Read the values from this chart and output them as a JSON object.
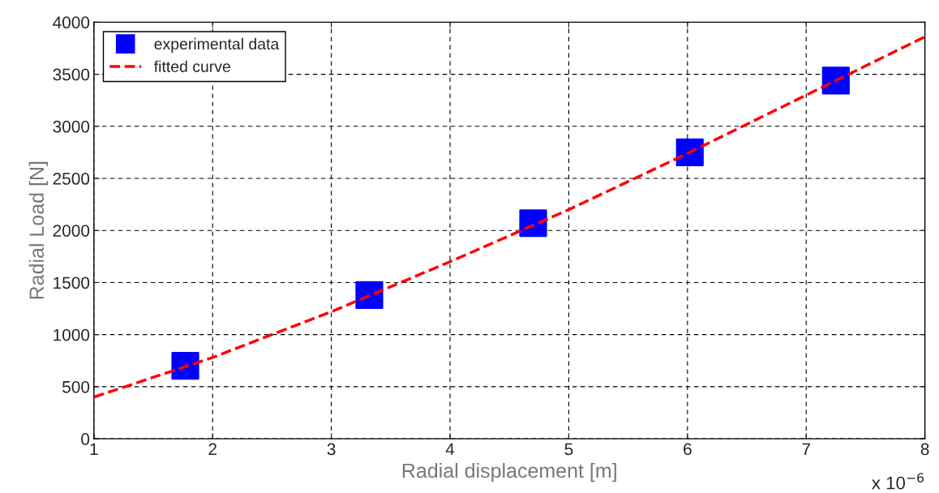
{
  "chart_data": {
    "type": "scatter",
    "xlabel": "Radial displacement [m]",
    "ylabel": "Radial Load [N]",
    "annotations": [
      "x 10$^{−6}$"
    ],
    "xlim": [
      1,
      8
    ],
    "xticks": [
      1,
      2,
      3,
      4,
      5,
      6,
      7,
      8
    ],
    "ylim": [
      0,
      4000
    ],
    "yticks": [
      0,
      500,
      1000,
      1500,
      2000,
      2500,
      3000,
      3500,
      4000
    ],
    "grid": true,
    "legend": "top left",
    "series": [
      {
        "name": "experimental data",
        "marker": "square",
        "color": "#0000ff",
        "x": [
          1.77,
          3.32,
          4.7,
          6.02,
          7.25
        ],
        "values": [
          700,
          1380,
          2070,
          2750,
          3440
        ]
      },
      {
        "name": "fitted curve",
        "type": "line",
        "line_style": "dashed",
        "color": "#ff0000",
        "x": [
          1,
          2,
          2.5,
          3,
          3.5,
          4,
          4.5,
          5,
          5.5,
          6,
          6.5,
          7,
          7.5,
          8
        ],
        "values": [
          400,
          780,
          1000,
          1220,
          1460,
          1700,
          1950,
          2200,
          2470,
          2740,
          3020,
          3300,
          3580,
          3860
        ]
      }
    ]
  }
}
